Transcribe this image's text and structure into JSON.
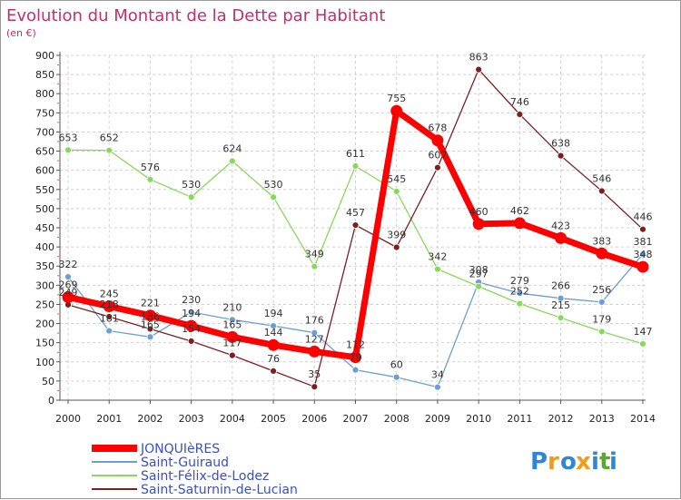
{
  "chart_data": {
    "type": "line",
    "title": "Evolution du Montant de la Dette par Habitant",
    "subtitle": "(en €)",
    "x": [
      "2000",
      "2001",
      "2002",
      "2003",
      "2004",
      "2005",
      "2006",
      "2007",
      "2008",
      "2009",
      "2010",
      "2011",
      "2012",
      "2013",
      "2014"
    ],
    "ylim": [
      0,
      900
    ],
    "yticks": [
      0,
      50,
      100,
      150,
      200,
      250,
      300,
      350,
      400,
      450,
      500,
      550,
      600,
      650,
      700,
      750,
      800,
      850,
      900
    ],
    "grid": true,
    "legend_position": "bottom-left",
    "series": [
      {
        "name": "JONQUIèRES",
        "color": "#ff0000",
        "values": [
          269,
          245,
          221,
          194,
          165,
          144,
          127,
          112,
          755,
          678,
          460,
          462,
          423,
          383,
          348
        ]
      },
      {
        "name": "Saint-Guiraud",
        "color": "#6b9fd4",
        "values": [
          322,
          181,
          165,
          230,
          210,
          194,
          176,
          79,
          60,
          34,
          308,
          279,
          266,
          256,
          381
        ]
      },
      {
        "name": "Saint-Félix-de-Lodez",
        "color": "#88d85a",
        "values": [
          653,
          652,
          576,
          530,
          624,
          530,
          349,
          611,
          545,
          342,
          297,
          252,
          215,
          179,
          147
        ]
      },
      {
        "name": "Saint-Saturnin-de-Lucian",
        "color": "#7b2020",
        "values": [
          249,
          218,
          186,
          154,
          117,
          76,
          35,
          457,
          399,
          607,
          863,
          746,
          638,
          546,
          446
        ]
      }
    ]
  },
  "logo": {
    "text": "Proxiti",
    "letters": [
      "P",
      "r",
      "o",
      "x",
      "i",
      "t",
      "i"
    ],
    "colors": [
      "#2e86d6",
      "#f39c12",
      "#2e86d6",
      "#f39c12",
      "#2e86d6",
      "#5aa832",
      "#2e86d6"
    ]
  }
}
